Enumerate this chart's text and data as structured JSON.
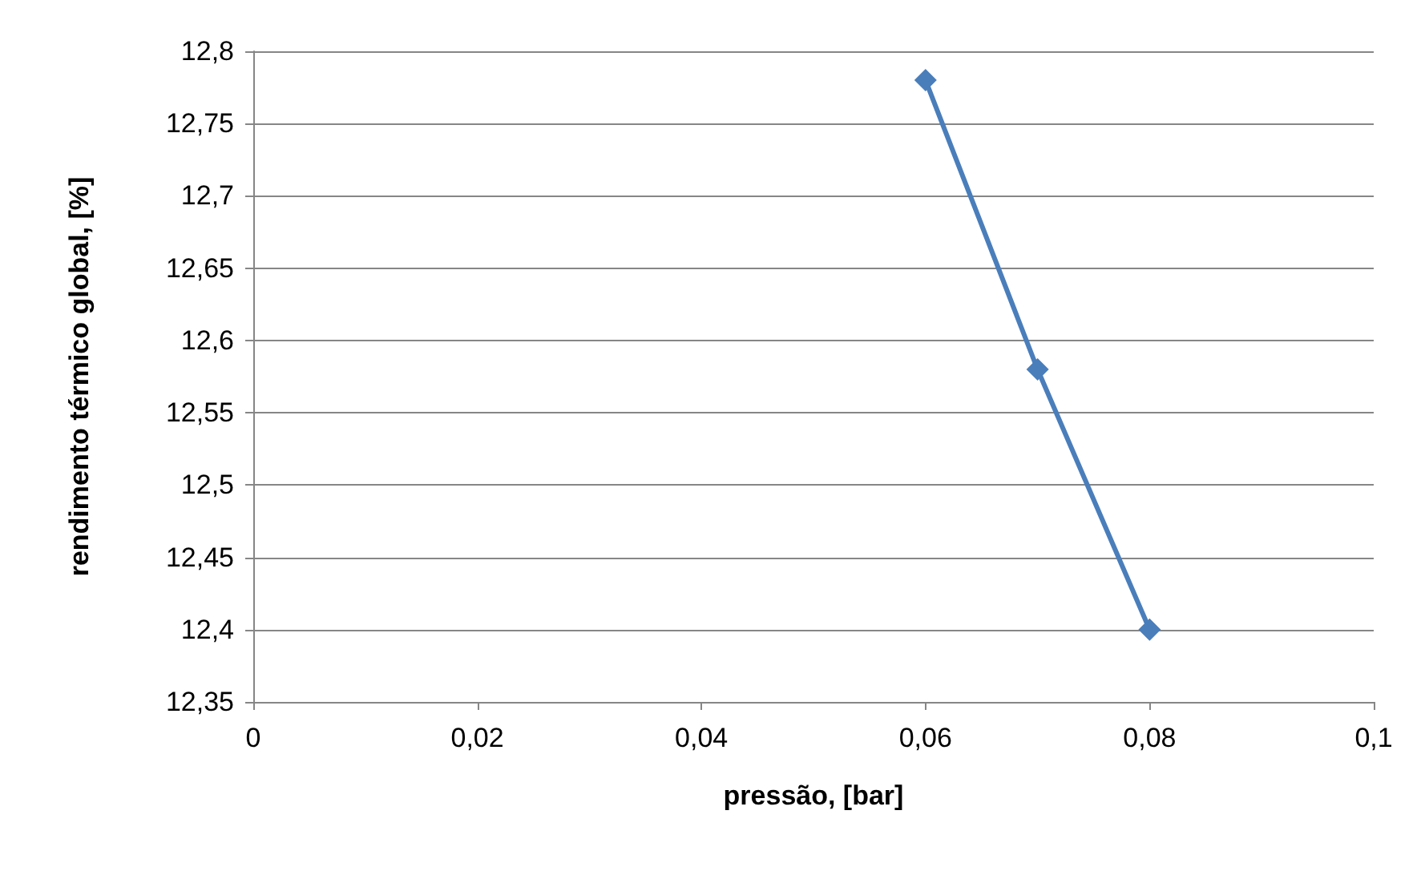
{
  "chart_data": {
    "type": "line",
    "xlabel": "pressão, [bar]",
    "ylabel": "rendimento térmico global, [%]",
    "x": [
      0.06,
      0.07,
      0.08
    ],
    "series": [
      {
        "color": "#4a7ebb",
        "values": [
          12.78,
          12.58,
          12.4
        ]
      }
    ],
    "xlim": [
      0,
      0.1
    ],
    "xticks": [
      0,
      {
        "value": 0.02,
        "label": "0,02"
      },
      {
        "value": 0.04,
        "label": "0,04"
      },
      {
        "value": 0.06,
        "label": "0,06"
      },
      {
        "value": 0.08,
        "label": "0,08"
      },
      {
        "value": 0.1,
        "label": "0,1"
      }
    ],
    "ylim": [
      12.35,
      12.8
    ],
    "yticks": [
      {
        "value": 12.35,
        "label": "12,35"
      },
      {
        "value": 12.4,
        "label": "12,4"
      },
      {
        "value": 12.45,
        "label": "12,45"
      },
      {
        "value": 12.5,
        "label": "12,5"
      },
      {
        "value": 12.55,
        "label": "12,55"
      },
      {
        "value": 12.6,
        "label": "12,6"
      },
      {
        "value": 12.65,
        "label": "12,65"
      },
      {
        "value": 12.7,
        "label": "12,7"
      },
      {
        "value": 12.75,
        "label": "12,75"
      },
      {
        "value": 12.8,
        "label": "12,8"
      }
    ],
    "grid": "y",
    "marker": "diamond",
    "line_style": "solid"
  }
}
